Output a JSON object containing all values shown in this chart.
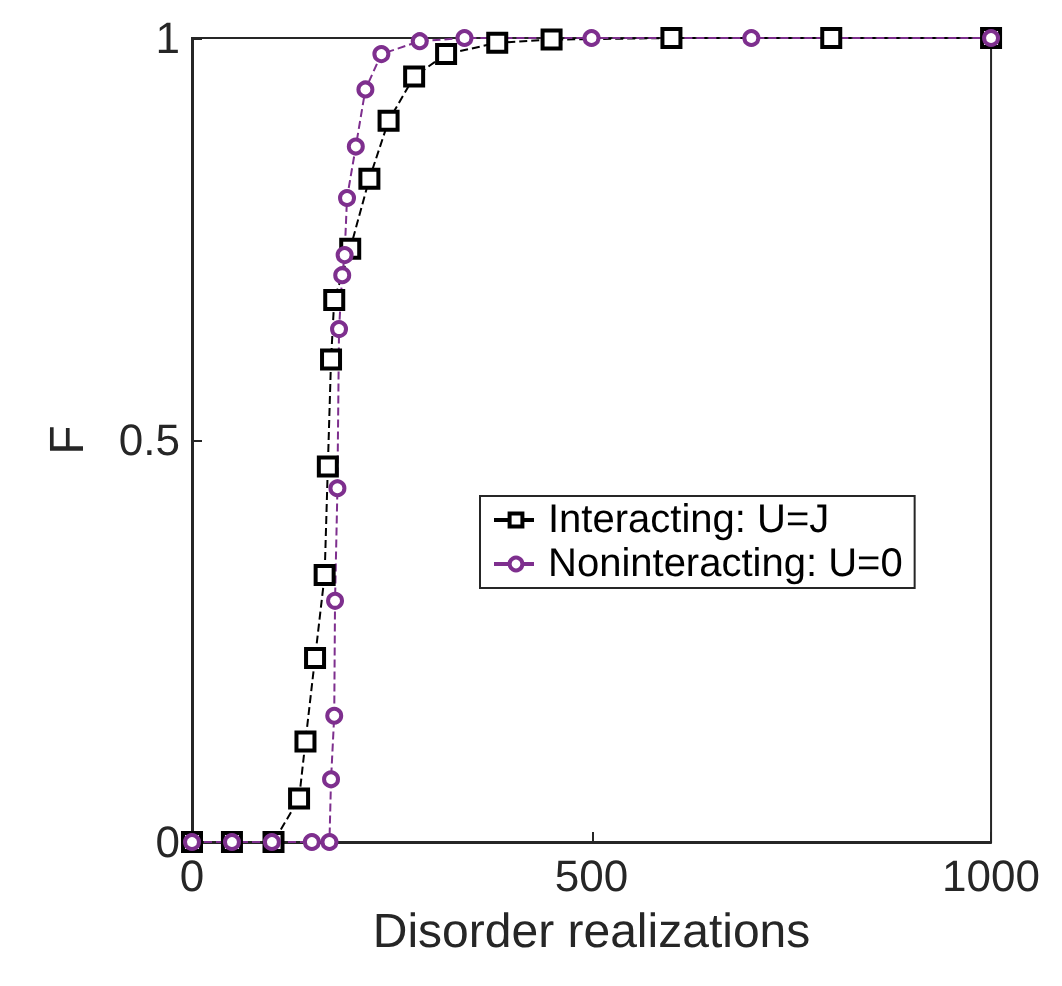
{
  "chart_data": {
    "type": "line",
    "xlabel": "Disorder realizations",
    "ylabel": "F",
    "xlim": [
      0,
      1000
    ],
    "xticks": [
      0,
      500,
      1000
    ],
    "ylim": [
      0,
      1
    ],
    "yticks": [
      0,
      0.5,
      1
    ],
    "grid": false,
    "legend": "right",
    "line_style": "dashed",
    "series": [
      {
        "name": "Interacting: U=J",
        "color": "#000000",
        "marker": "square",
        "x": [
          0,
          50,
          102,
          134,
          142,
          154,
          166,
          170,
          174,
          178,
          198,
          222,
          246,
          278,
          318,
          382,
          450,
          600,
          800,
          1000
        ],
        "values": [
          0,
          0,
          0,
          0.054,
          0.125,
          0.229,
          0.332,
          0.467,
          0.6,
          0.674,
          0.738,
          0.825,
          0.897,
          0.952,
          0.98,
          0.994,
          0.998,
          1,
          1,
          1
        ]
      },
      {
        "name": "Noninteracting: U=0",
        "color": "#7e2f8e",
        "marker": "circle",
        "x": [
          0,
          50,
          100,
          150,
          172,
          174,
          178,
          179,
          182,
          184,
          188,
          191,
          194,
          205,
          217,
          237,
          285,
          341,
          500,
          700,
          1000
        ],
        "values": [
          0,
          0,
          0,
          0,
          0,
          0.078,
          0.157,
          0.3,
          0.44,
          0.638,
          0.705,
          0.73,
          0.801,
          0.865,
          0.936,
          0.98,
          0.996,
          1,
          1,
          1,
          1
        ]
      }
    ]
  }
}
